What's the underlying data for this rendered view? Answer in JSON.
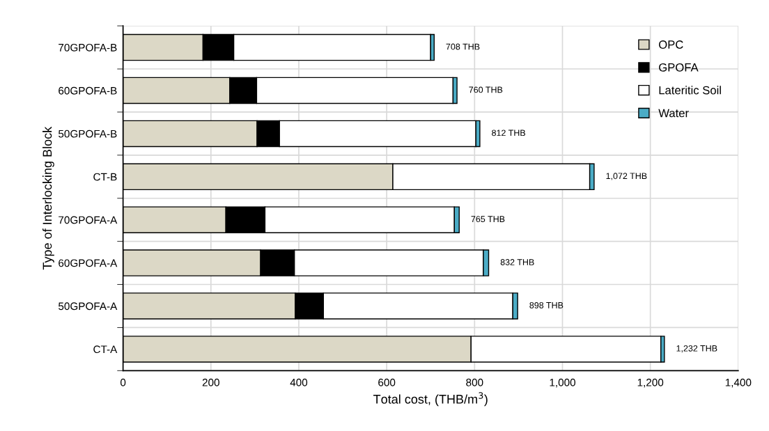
{
  "chart_data": {
    "type": "bar",
    "orientation": "horizontal",
    "stacked": true,
    "xlabel": "Total cost, (THB/m$^{3}$)",
    "ylabel": "Type of Interlocking Block",
    "categories": [
      "70GPOFA-B",
      "60GPOFA-B",
      "50GPOFA-B",
      "CT-B",
      "70GPOFA-A",
      "60GPOFA-A",
      "50GPOFA-A",
      "CT-A"
    ],
    "series": [
      {
        "name": "OPC",
        "color": "#dcd8c6",
        "values": [
          182,
          243,
          305,
          614,
          234,
          313,
          392,
          792
        ]
      },
      {
        "name": "GPOFA",
        "color": "#000000",
        "values": [
          70,
          61,
          51,
          0,
          89,
          77,
          64,
          0
        ]
      },
      {
        "name": "Lateritic Soil",
        "color": "#ffffff",
        "values": [
          448,
          447,
          447,
          448,
          431,
          430,
          431,
          432
        ]
      },
      {
        "name": "Water",
        "color": "#4bacc6",
        "values": [
          8,
          9,
          9,
          10,
          11,
          12,
          11,
          8
        ]
      }
    ],
    "totals": [
      "708 THB",
      "760 THB",
      "812 THB",
      "1,072 THB",
      "765 THB",
      "832 THB",
      "898 THB",
      "1,232 THB"
    ],
    "xlim": [
      0,
      1400
    ],
    "xticks": [
      0,
      200,
      400,
      600,
      800,
      {
        "value": 1000,
        "label": "1,000"
      },
      {
        "value": 1200,
        "label": "1,200"
      },
      {
        "value": 1400,
        "label": "1,400"
      }
    ],
    "grid": true,
    "legend": "top right"
  }
}
